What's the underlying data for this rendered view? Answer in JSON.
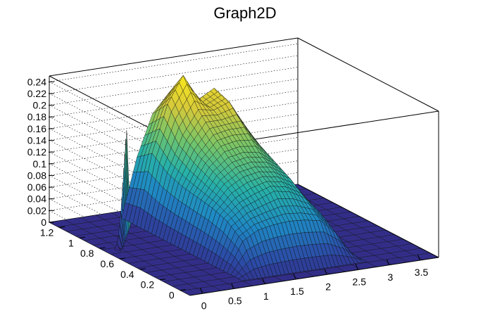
{
  "chart_data": {
    "type": "surface3d",
    "title": "Graph2D",
    "xlabel": "",
    "ylabel": "",
    "zlabel": "",
    "xlim": [
      -0.2,
      3.8
    ],
    "ylim": [
      -0.1,
      1.3
    ],
    "zlim": [
      0,
      0.25
    ],
    "x_ticks": [
      "0",
      "0.5",
      "1",
      "1.5",
      "2",
      "2.5",
      "3",
      "3.5"
    ],
    "y_ticks": [
      "0",
      "0.2",
      "0.4",
      "0.6",
      "0.8",
      "1",
      "1.2"
    ],
    "z_ticks": [
      "0",
      "0.02",
      "0.04",
      "0.06",
      "0.08",
      "0.1",
      "0.12",
      "0.14",
      "0.16",
      "0.18",
      "0.2",
      "0.22",
      "0.24"
    ],
    "grid": true,
    "palette": "viridis-like",
    "colors": [
      "#35207a",
      "#2b4ea8",
      "#1f88c4",
      "#27b1a8",
      "#74c56a",
      "#d6c93a",
      "#f8e61e"
    ],
    "surface": {
      "x": [
        0.8,
        1.05,
        1.3,
        1.55,
        1.8,
        2.05,
        2.3,
        2.55,
        2.8
      ],
      "y": [
        0.0,
        0.15,
        0.3,
        0.45,
        0.6,
        0.75,
        0.9,
        1.05,
        1.2
      ],
      "z": [
        [
          0.0,
          0.0,
          0.0,
          0.0,
          0.0,
          0.0,
          0.0,
          0.0,
          0.0
        ],
        [
          0.0,
          0.05,
          0.065,
          0.07,
          0.072,
          0.07,
          0.065,
          0.04,
          0.0
        ],
        [
          0.0,
          0.07,
          0.09,
          0.1,
          0.11,
          0.105,
          0.09,
          0.06,
          0.0
        ],
        [
          0.0,
          0.08,
          0.11,
          0.125,
          0.13,
          0.125,
          0.11,
          0.07,
          0.0
        ],
        [
          0.0,
          0.085,
          0.125,
          0.145,
          0.15,
          0.145,
          0.125,
          0.08,
          0.0
        ],
        [
          0.0,
          0.09,
          0.14,
          0.17,
          0.175,
          0.175,
          0.14,
          0.09,
          0.0
        ],
        [
          0.0,
          0.1,
          0.16,
          0.2,
          0.195,
          0.205,
          0.16,
          0.1,
          0.0
        ],
        [
          0.0,
          0.12,
          0.2,
          0.245,
          0.2,
          0.215,
          0.17,
          0.11,
          0.0
        ],
        [
          0.0,
          0.1,
          0.17,
          0.2,
          0.17,
          0.18,
          0.14,
          0.09,
          0.0
        ]
      ]
    },
    "spikes": {
      "x": [
        0.0,
        0.08,
        0.16,
        0.24,
        0.32,
        0.4,
        0.48,
        0.56,
        0.64,
        0.72
      ],
      "y": [
        0.75,
        0.78,
        0.82,
        0.86,
        0.9,
        0.94,
        0.98,
        1.02,
        1.06,
        1.1
      ],
      "z": [
        0.01,
        0.02,
        0.035,
        0.05,
        0.07,
        0.09,
        0.11,
        0.13,
        0.15,
        0.16
      ]
    }
  }
}
